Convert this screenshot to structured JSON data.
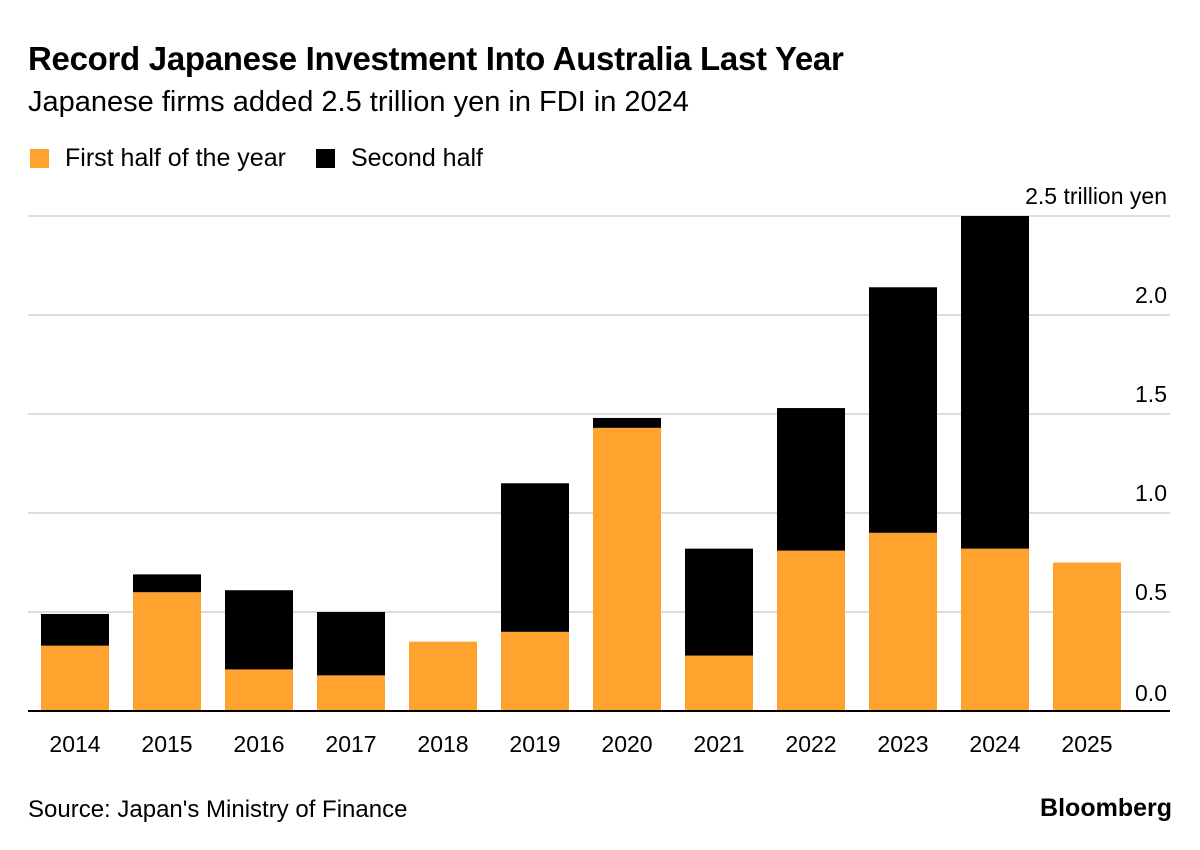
{
  "header": {
    "title": "Record Japanese Investment Into Australia Last Year",
    "subtitle": "Japanese firms added 2.5 trillion yen in FDI in 2024"
  },
  "footer": {
    "source": "Source: Japan's Ministry of Finance",
    "brand": "Bloomberg"
  },
  "colors": {
    "first_half": "#FFA32E",
    "second_half": "#000000",
    "grid": "#d0d0d0",
    "axis": "#000000"
  },
  "chart_data": {
    "type": "bar",
    "stacked": true,
    "categories": [
      "2014",
      "2015",
      "2016",
      "2017",
      "2018",
      "2019",
      "2020",
      "2021",
      "2022",
      "2023",
      "2024",
      "2025"
    ],
    "series": [
      {
        "name": "First half of the year",
        "values": [
          0.33,
          0.6,
          0.21,
          0.18,
          0.35,
          0.4,
          1.43,
          0.28,
          0.81,
          0.9,
          0.82,
          0.75
        ]
      },
      {
        "name": "Second half",
        "values": [
          0.16,
          0.09,
          0.4,
          0.32,
          0.0,
          0.75,
          0.05,
          0.54,
          0.72,
          1.24,
          1.68,
          0.0
        ]
      }
    ],
    "yticks": [
      "0.0",
      "0.5",
      "1.0",
      "1.5",
      "2.0",
      "2.5 trillion yen"
    ],
    "ylim": [
      0,
      2.5
    ],
    "grid": true,
    "legend": "top-left"
  }
}
